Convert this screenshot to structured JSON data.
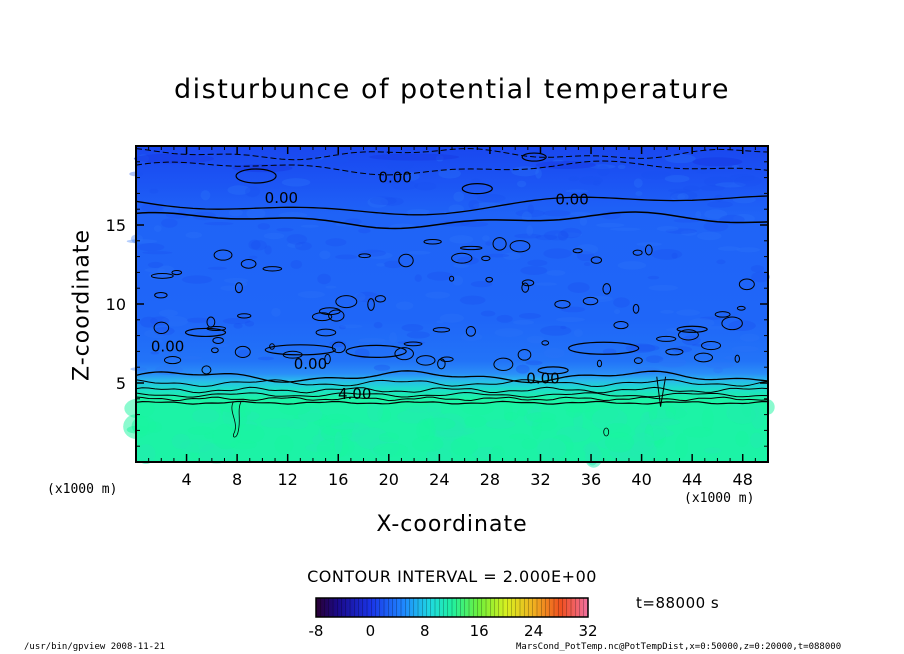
{
  "chart_data": {
    "type": "heatmap",
    "title": "disturbunce of potential temperature",
    "xlabel": "X-coordinate",
    "ylabel": "Z-coordinate",
    "x_unit": "(x1000 m)",
    "y_unit": "(x1000 m)",
    "xlim": [
      0,
      50
    ],
    "ylim": [
      0,
      20
    ],
    "x_ticks": [
      "4",
      "8",
      "12",
      "16",
      "20",
      "24",
      "28",
      "32",
      "36",
      "40",
      "44",
      "48"
    ],
    "y_ticks": [
      "5",
      "10",
      "15"
    ],
    "contour_labels": [
      {
        "text": "0.00",
        "x": 20.5,
        "z": 18.0
      },
      {
        "text": "0.00",
        "x": 34.5,
        "z": 16.6
      },
      {
        "text": "0.00",
        "x": 11.5,
        "z": 16.7
      },
      {
        "text": "0.00",
        "x": 2.5,
        "z": 7.3
      },
      {
        "text": "0.00",
        "x": 13.8,
        "z": 6.2
      },
      {
        "text": "0.00",
        "x": 32.2,
        "z": 5.3
      },
      {
        "text": "4.00",
        "x": 17.3,
        "z": 4.3
      }
    ],
    "field": {
      "description_levels": [
        {
          "z_from": 0,
          "z_to": 3.8,
          "value": 7
        },
        {
          "z_from": 3.8,
          "z_to": 4.6,
          "value": 5
        },
        {
          "z_from": 4.6,
          "z_to": 5.4,
          "value": 2
        },
        {
          "z_from": 5.4,
          "z_to": 15,
          "value": -1
        },
        {
          "z_from": 15,
          "z_to": 20,
          "value": -2
        }
      ]
    },
    "colorbar": {
      "ticks": [
        "-8",
        "0",
        "8",
        "16",
        "24",
        "32"
      ],
      "range": [
        -8,
        32
      ]
    },
    "contour_interval_text": "CONTOUR INTERVAL = 2.000E+00",
    "time_text": "t=88000 s"
  },
  "footer": {
    "left": "/usr/bin/gpview  2008-11-21",
    "right": "MarsCond_PotTemp.nc@PotTempDist,x=0:50000,z=0:20000,t=088000"
  },
  "colors": {
    "upper_blue": "#1a4df5",
    "mid_blue": "#1f63f7",
    "lower_blue": "#2a8df8",
    "cyan": "#1fd9d0",
    "green_aqua": "#1cf3a6"
  }
}
